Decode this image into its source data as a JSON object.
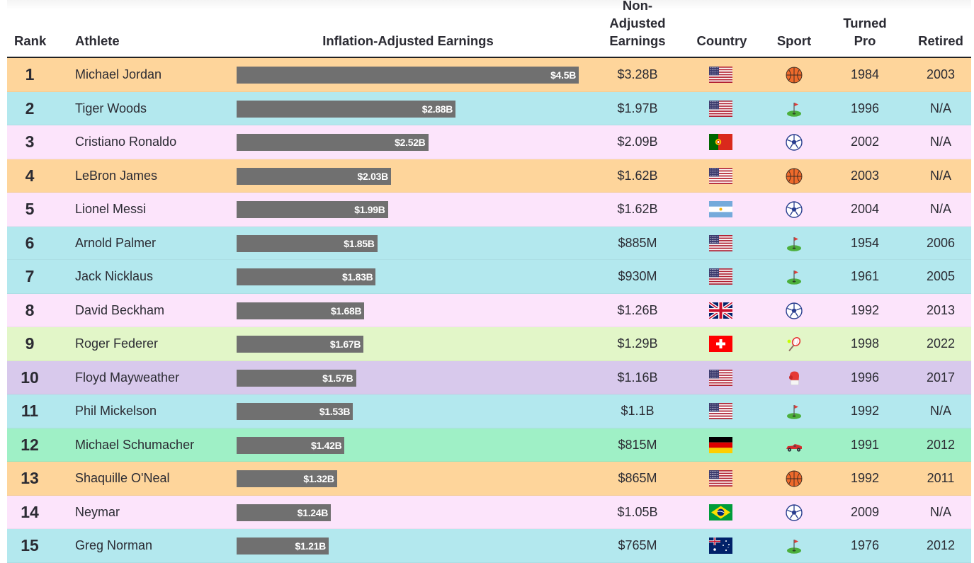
{
  "header": {
    "rank": "Rank",
    "athlete": "Athlete",
    "adjusted": "Inflation-Adjusted Earnings",
    "nonadjusted_1": "Non-",
    "nonadjusted_2": "Adjusted",
    "nonadjusted_3": "Earnings",
    "country": "Country",
    "sport": "Sport",
    "turned_1": "Turned",
    "turned_2": "Pro",
    "retired": "Retired"
  },
  "colors": {
    "basketball": "#fed59b",
    "golf": "#b3e8ee",
    "soccer": "#fce4fb",
    "tennis": "#e2f6c8",
    "boxing": "#d8c9ec",
    "racing": "#9ff0c6",
    "bar": "#707070"
  },
  "chart_data": {
    "type": "bar",
    "title": "",
    "xlabel": "Inflation-Adjusted Earnings",
    "unit": "billion USD",
    "categories": [
      "Michael Jordan",
      "Tiger Woods",
      "Cristiano Ronaldo",
      "LeBron James",
      "Lionel Messi",
      "Arnold Palmer",
      "Jack Nicklaus",
      "David Beckham",
      "Roger Federer",
      "Floyd Mayweather",
      "Phil Mickelson",
      "Michael Schumacher",
      "Shaquille O'Neal",
      "Neymar",
      "Greg Norman"
    ],
    "values": [
      4.5,
      2.88,
      2.52,
      2.03,
      1.99,
      1.85,
      1.83,
      1.68,
      1.67,
      1.57,
      1.53,
      1.42,
      1.32,
      1.24,
      1.21
    ],
    "xlim": [
      0,
      4.5
    ],
    "grid": false,
    "legend": "none"
  },
  "rows": [
    {
      "rank": "1",
      "athlete": "Michael Jordan",
      "label": "$4.5B",
      "nonadj": "$3.28B",
      "country": "us",
      "sport": "basketball",
      "pro": "1984",
      "retired": "2003"
    },
    {
      "rank": "2",
      "athlete": "Tiger Woods",
      "label": "$2.88B",
      "nonadj": "$1.97B",
      "country": "us",
      "sport": "golf",
      "pro": "1996",
      "retired": "N/A"
    },
    {
      "rank": "3",
      "athlete": "Cristiano Ronaldo",
      "label": "$2.52B",
      "nonadj": "$2.09B",
      "country": "pt",
      "sport": "soccer",
      "pro": "2002",
      "retired": "N/A"
    },
    {
      "rank": "4",
      "athlete": "LeBron James",
      "label": "$2.03B",
      "nonadj": "$1.62B",
      "country": "us",
      "sport": "basketball",
      "pro": "2003",
      "retired": "N/A"
    },
    {
      "rank": "5",
      "athlete": "Lionel Messi",
      "label": "$1.99B",
      "nonadj": "$1.62B",
      "country": "ar",
      "sport": "soccer",
      "pro": "2004",
      "retired": "N/A"
    },
    {
      "rank": "6",
      "athlete": "Arnold Palmer",
      "label": "$1.85B",
      "nonadj": "$885M",
      "country": "us",
      "sport": "golf",
      "pro": "1954",
      "retired": "2006"
    },
    {
      "rank": "7",
      "athlete": "Jack Nicklaus",
      "label": "$1.83B",
      "nonadj": "$930M",
      "country": "us",
      "sport": "golf",
      "pro": "1961",
      "retired": "2005"
    },
    {
      "rank": "8",
      "athlete": "David Beckham",
      "label": "$1.68B",
      "nonadj": "$1.26B",
      "country": "gb",
      "sport": "soccer",
      "pro": "1992",
      "retired": "2013"
    },
    {
      "rank": "9",
      "athlete": "Roger Federer",
      "label": "$1.67B",
      "nonadj": "$1.29B",
      "country": "ch",
      "sport": "tennis",
      "pro": "1998",
      "retired": "2022"
    },
    {
      "rank": "10",
      "athlete": "Floyd Mayweather",
      "label": "$1.57B",
      "nonadj": "$1.16B",
      "country": "us",
      "sport": "boxing",
      "pro": "1996",
      "retired": "2017"
    },
    {
      "rank": "11",
      "athlete": "Phil Mickelson",
      "label": "$1.53B",
      "nonadj": "$1.1B",
      "country": "us",
      "sport": "golf",
      "pro": "1992",
      "retired": "N/A"
    },
    {
      "rank": "12",
      "athlete": "Michael Schumacher",
      "label": "$1.42B",
      "nonadj": "$815M",
      "country": "de",
      "sport": "racing",
      "pro": "1991",
      "retired": "2012"
    },
    {
      "rank": "13",
      "athlete": "Shaquille O'Neal",
      "label": "$1.32B",
      "nonadj": "$865M",
      "country": "us",
      "sport": "basketball",
      "pro": "1992",
      "retired": "2011"
    },
    {
      "rank": "14",
      "athlete": "Neymar",
      "label": "$1.24B",
      "nonadj": "$1.05B",
      "country": "br",
      "sport": "soccer",
      "pro": "2009",
      "retired": "N/A"
    },
    {
      "rank": "15",
      "athlete": "Greg Norman",
      "label": "$1.21B",
      "nonadj": "$765M",
      "country": "au",
      "sport": "golf",
      "pro": "1976",
      "retired": "2012"
    }
  ]
}
